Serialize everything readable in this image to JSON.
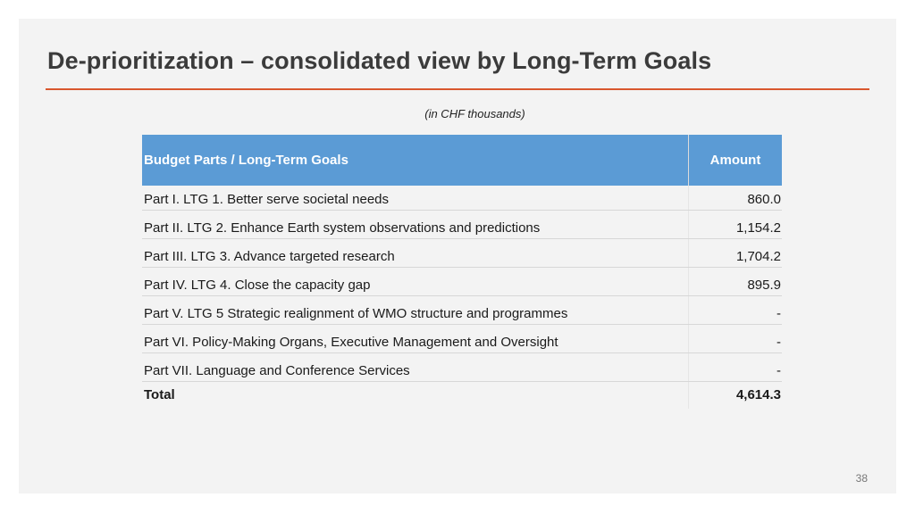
{
  "slide": {
    "title": "De-prioritization – consolidated view by Long-Term Goals",
    "subtitle": "(in CHF thousands)",
    "page_number": "38"
  },
  "table": {
    "headers": [
      "Budget Parts / Long-Term Goals",
      "Amount"
    ],
    "rows": [
      {
        "label": "Part I. LTG 1. Better serve societal needs",
        "amount": "860.0"
      },
      {
        "label": "Part II. LTG 2. Enhance Earth system observations and predictions",
        "amount": "1,154.2"
      },
      {
        "label": "Part III. LTG 3. Advance targeted research",
        "amount": "1,704.2"
      },
      {
        "label": "Part IV. LTG 4. Close the capacity gap",
        "amount": "895.9"
      },
      {
        "label": "Part V. LTG 5 Strategic realignment of WMO structure and programmes",
        "amount": "-"
      },
      {
        "label": "Part VI. Policy-Making Organs, Executive Management and Oversight",
        "amount": "-"
      },
      {
        "label": "Part VII. Language and Conference Services",
        "amount": "-"
      }
    ],
    "total": {
      "label": "Total",
      "amount": "4,614.3"
    }
  },
  "colors": {
    "header_bg": "#5b9bd5",
    "accent_rule": "#d9572e",
    "slide_bg": "#f3f3f3"
  }
}
